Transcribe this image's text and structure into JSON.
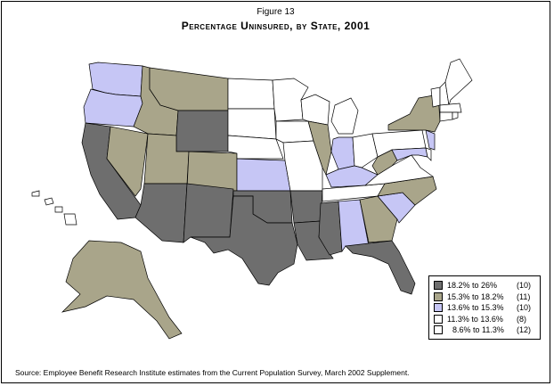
{
  "figure_label": "Figure 13",
  "title": "Percentage Uninsured, by State, 2001",
  "colors": {
    "c1": "#6e6e6e",
    "c2": "#a9a58a",
    "c3": "#c6c6f5",
    "c4": "#ffffff",
    "c5": "#ffffff"
  },
  "legend": [
    {
      "range": "18.2% to 26%",
      "count": "(10)",
      "color": "#6e6e6e"
    },
    {
      "range": "15.3% to 18.2%",
      "count": "(11)",
      "color": "#a9a58a"
    },
    {
      "range": "13.6% to 15.3%",
      "count": "(10)",
      "color": "#c6c6f5"
    },
    {
      "range": "11.3% to 13.6%",
      "count": "(8)",
      "color": "#ffffff"
    },
    {
      "range": "8.6% to 11.3%",
      "count": "(12)",
      "color": "#ffffff"
    }
  ],
  "source": "Source: Employee Benefit Research Institute estimates from the Current Population Survey, March 2002 Supplement."
}
